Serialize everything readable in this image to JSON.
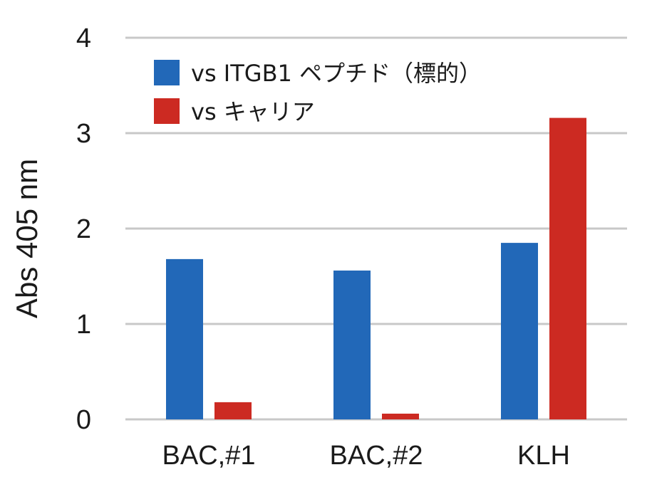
{
  "chart_data": {
    "type": "bar",
    "categories": [
      "BAC,#1",
      "BAC,#2",
      "KLH"
    ],
    "series": [
      {
        "name": "vs ITGB1 ペプチド（標的）",
        "color": "#2268b8",
        "values": [
          1.68,
          1.56,
          1.85
        ]
      },
      {
        "name": "vs キャリア",
        "color": "#cc2a22",
        "values": [
          0.18,
          0.06,
          3.16
        ]
      }
    ],
    "title": "",
    "xlabel": "",
    "ylabel": "Abs 405 nm",
    "ylim": [
      0,
      4
    ],
    "yticks": [
      "0",
      "1",
      "2",
      "3",
      "4"
    ],
    "grid": true,
    "legend_position": "top-left"
  }
}
